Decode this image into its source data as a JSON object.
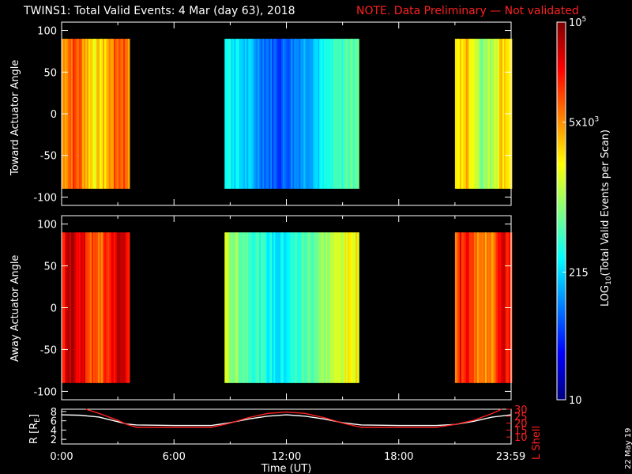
{
  "header": {
    "title": "TWINS1: Total Valid Events:  4 Mar (day  63), 2018",
    "note": "NOTE. Data Preliminary — Not validated",
    "note_color": "#ff2020"
  },
  "datestamp": "22 May 19",
  "chart_data": [
    {
      "type": "heatmap",
      "name": "toward-panel",
      "ylabel": "Toward Actuator Angle",
      "ylim": [
        -110,
        110
      ],
      "yticks": [
        -100,
        -50,
        0,
        50,
        100
      ],
      "data_yrange": [
        -90,
        90
      ],
      "xlim_hours": [
        0,
        24
      ],
      "segments": [
        {
          "start_hours": 0.0,
          "end_hours": 3.6,
          "level": 0.72
        },
        {
          "start_hours": 8.7,
          "end_hours": 15.8,
          "level": 0.35
        },
        {
          "start_hours": 21.0,
          "end_hours": 24.0,
          "level": 0.6
        }
      ]
    },
    {
      "type": "heatmap",
      "name": "away-panel",
      "ylabel": "Away Actuator Angle",
      "ylim": [
        -110,
        110
      ],
      "yticks": [
        -100,
        -50,
        0,
        50,
        100
      ],
      "data_yrange": [
        -90,
        90
      ],
      "xlim_hours": [
        0,
        24
      ],
      "segments": [
        {
          "start_hours": 0.0,
          "end_hours": 3.6,
          "level": 0.85
        },
        {
          "start_hours": 8.7,
          "end_hours": 15.8,
          "level": 0.5
        },
        {
          "start_hours": 21.0,
          "end_hours": 24.0,
          "level": 0.8
        }
      ]
    },
    {
      "type": "line",
      "name": "orbit-panel",
      "ylabel": "R [R",
      "ylabel_sub": "E",
      "ylim": [
        1,
        8.5
      ],
      "yticks": [
        2,
        4,
        6,
        8
      ],
      "y2label": "L Shell",
      "y2lim": [
        5,
        30
      ],
      "y2ticks": [
        10,
        15,
        20,
        25,
        30
      ],
      "xlabel": "Time (UT)",
      "xticks": [
        "0:00",
        "6:00",
        "12:00",
        "18:00",
        "23:59"
      ],
      "xtick_hours": [
        0,
        6,
        12,
        18,
        23.983
      ],
      "series": [
        {
          "axis": "left",
          "color": "#ffffff",
          "x": [
            0,
            1,
            2,
            3,
            3.5,
            4,
            6,
            8,
            9,
            10,
            11,
            12,
            13,
            14,
            15,
            16,
            18,
            20,
            21,
            22,
            23,
            24
          ],
          "y": [
            7.3,
            7.2,
            6.8,
            5.8,
            5.3,
            5.1,
            5.0,
            5.0,
            5.6,
            6.4,
            7.0,
            7.3,
            7.0,
            6.4,
            5.6,
            5.1,
            5.0,
            5.0,
            5.2,
            5.9,
            6.8,
            7.3
          ]
        },
        {
          "axis": "right",
          "color": "#ff2020",
          "x": [
            1.3,
            2,
            3,
            3.5,
            4,
            6,
            8,
            9,
            10,
            11,
            12,
            13,
            14,
            15,
            16,
            18,
            20,
            21,
            22,
            23,
            23.5
          ],
          "y": [
            30,
            27,
            22,
            19,
            17,
            17,
            17,
            20,
            24,
            27,
            28,
            27,
            24,
            20,
            17,
            17,
            17,
            19,
            22,
            27,
            30
          ]
        }
      ]
    }
  ],
  "colorbar": {
    "label": "LOG",
    "label_sub": "10",
    "label_rest": "(Total Valid Events per Scan)",
    "ticks": [
      {
        "base": "10",
        "exp": "5",
        "level": 1.0
      },
      {
        "base": "5x10",
        "exp": "3",
        "level": 0.735
      },
      {
        "base": "215",
        "exp": "",
        "level": 0.338
      },
      {
        "base": "10",
        "exp": "",
        "level": 0.0
      }
    ]
  }
}
